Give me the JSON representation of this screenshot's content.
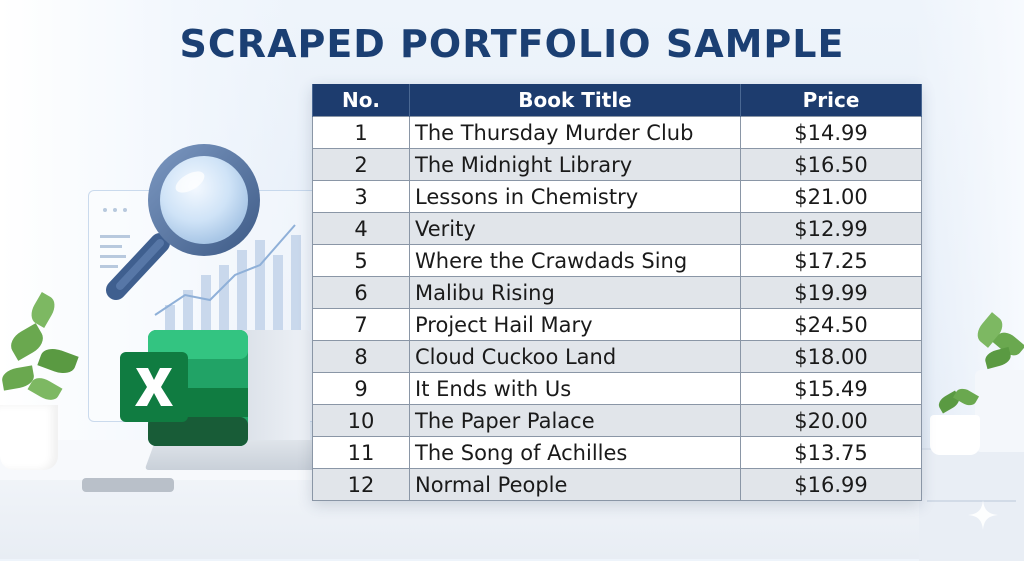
{
  "title": "SCRAPED PORTFOLIO SAMPLE",
  "table": {
    "headers": [
      "No.",
      "Book Title",
      "Price"
    ],
    "rows": [
      {
        "no": "1",
        "title": "The Thursday Murder Club",
        "price": "$14.99"
      },
      {
        "no": "2",
        "title": "The Midnight Library",
        "price": "$16.50"
      },
      {
        "no": "3",
        "title": "Lessons in Chemistry",
        "price": "$21.00"
      },
      {
        "no": "4",
        "title": "Verity",
        "price": "$12.99"
      },
      {
        "no": "5",
        "title": "Where the Crawdads Sing",
        "price": "$17.25"
      },
      {
        "no": "6",
        "title": "Malibu Rising",
        "price": "$19.99"
      },
      {
        "no": "7",
        "title": "Project Hail Mary",
        "price": "$24.50"
      },
      {
        "no": "8",
        "title": "Cloud Cuckoo Land",
        "price": "$18.00"
      },
      {
        "no": "9",
        "title": "It Ends with Us",
        "price": "$15.49"
      },
      {
        "no": "10",
        "title": "The Paper Palace",
        "price": "$20.00"
      },
      {
        "no": "11",
        "title": "The Song of Achilles",
        "price": "$13.75"
      },
      {
        "no": "12",
        "title": "Normal People",
        "price": "$16.99"
      }
    ]
  },
  "icons": {
    "magnifier": "magnifying-glass-icon",
    "excel": "excel-icon",
    "sparkle": "sparkle-icon"
  },
  "colors": {
    "title": "#1b3f73",
    "header_bg": "#1d3c6e",
    "row_alt": "#e1e5ea",
    "excel_green": "#1e7145"
  }
}
